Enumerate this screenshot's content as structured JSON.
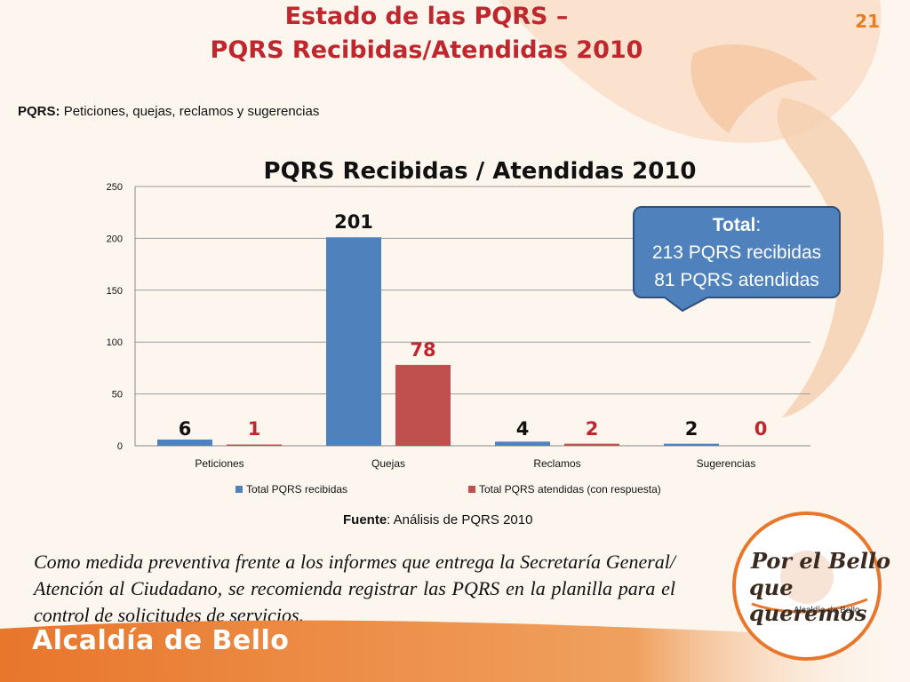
{
  "slide": {
    "title_line1": "Estado de las PQRS –",
    "title_line2": "PQRS Recibidas/Atendidas 2010",
    "page_number": "21",
    "subtitle_label": "PQRS:",
    "subtitle_text": "Peticiones, quejas, reclamos y sugerencias",
    "source_label": "Fuente",
    "source_text": ": Análisis de PQRS 2010",
    "body_text": "Como medida preventiva frente a los informes que entrega la Secretaría General/ Atención al Ciudadano, se recomienda registrar las PQRS en la planilla para el control de solicitudes de servicios.",
    "footer_brand": "Alcaldía de Bello",
    "logo_line1": "Por el Bello",
    "logo_line2": "que queremos",
    "logo_sub": "Alcaldía de Bello"
  },
  "callout": {
    "label": "Total",
    "colon": ":",
    "line2": "213 PQRS recibidas",
    "line3": "81 PQRS atendidas"
  },
  "colors": {
    "title": "#c0272d",
    "series1": "#4f81bd",
    "series2": "#c0504d",
    "footer": "#e8762b"
  },
  "chart_data": {
    "type": "bar",
    "title": "PQRS Recibidas  / Atendidas 2010",
    "categories": [
      "Peticiones",
      "Quejas",
      "Reclamos",
      "Sugerencias"
    ],
    "series": [
      {
        "name": "Total PQRS recibidas",
        "values": [
          6,
          201,
          4,
          2
        ],
        "color": "#4f81bd",
        "label_color": "#111111"
      },
      {
        "name": "Total PQRS atendidas (con respuesta)",
        "values": [
          1,
          78,
          2,
          0
        ],
        "color": "#c0504d",
        "label_color": "#c0272d"
      }
    ],
    "ylim": [
      0,
      250
    ],
    "yticks": [
      0,
      50,
      100,
      150,
      200,
      250
    ],
    "grid": true,
    "legend": "bottom"
  }
}
